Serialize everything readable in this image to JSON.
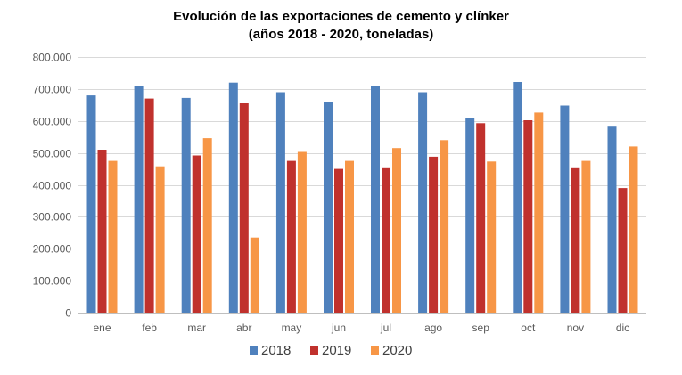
{
  "chart_data": {
    "type": "bar",
    "title": "Evolución de las exportaciones de cemento y clínker",
    "subtitle": "(años 2018 - 2020, toneladas)",
    "categories": [
      "ene",
      "feb",
      "mar",
      "abr",
      "may",
      "jun",
      "jul",
      "ago",
      "sep",
      "oct",
      "nov",
      "dic"
    ],
    "series": [
      {
        "name": "2018",
        "color": "#4F81BD",
        "values": [
          680000,
          710000,
          672000,
          720000,
          690000,
          660000,
          708000,
          690000,
          610000,
          722000,
          648000,
          582000
        ]
      },
      {
        "name": "2019",
        "color": "#C0312D",
        "values": [
          510000,
          670000,
          492000,
          655000,
          475000,
          450000,
          452000,
          488000,
          593000,
          602000,
          452000,
          390000
        ]
      },
      {
        "name": "2020",
        "color": "#F79646",
        "values": [
          475000,
          458000,
          546000,
          235000,
          503000,
          475000,
          515000,
          540000,
          473000,
          626000,
          475000,
          520000
        ]
      }
    ],
    "ylim": [
      0,
      800000
    ],
    "yticks": [
      0,
      100000,
      200000,
      300000,
      400000,
      500000,
      600000,
      700000,
      800000
    ],
    "ytick_labels": [
      "0",
      "100.000",
      "200.000",
      "300.000",
      "400.000",
      "500.000",
      "600.000",
      "700.000",
      "800.000"
    ],
    "grid": true,
    "legend_position": "bottom"
  }
}
